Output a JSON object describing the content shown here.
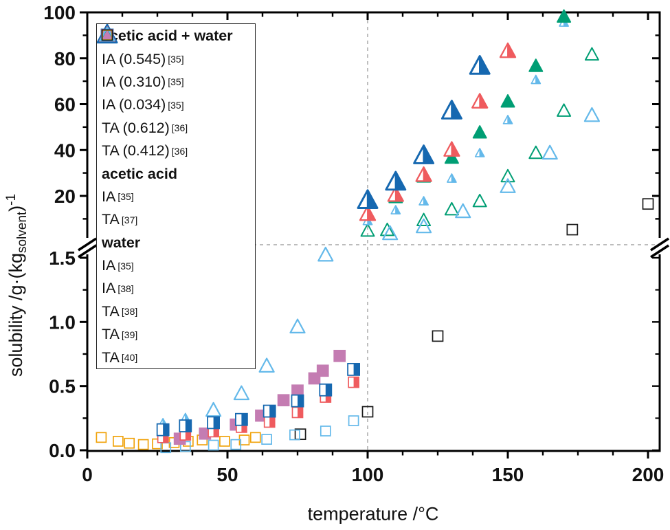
{
  "chart_data": {
    "type": "scatter",
    "title": "",
    "xlabel": "temperature /°C",
    "ylabel_parts": {
      "pre": "solubility /g·(kg",
      "sub": "solvent",
      "post": ")",
      "sup": "-1"
    },
    "x_axis": {
      "ticks": [
        0,
        50,
        100,
        150,
        200
      ],
      "minor_interval": 12.5,
      "range": [
        0,
        204
      ]
    },
    "y_axis_broken": {
      "upper_segment": {
        "ticks": [
          20,
          40,
          60,
          80,
          100
        ],
        "minor_ticks": [
          10,
          30,
          50,
          70,
          90
        ],
        "units": "g/kg_solvent"
      },
      "lower_segment": {
        "ticks": [
          0.0,
          0.5,
          1.0,
          1.5
        ],
        "minor_ticks": [
          0.25,
          0.75,
          1.25
        ],
        "units": "g/kg_solvent"
      }
    },
    "guide_lines": {
      "vertical_at_x": 100,
      "horizontal_at_axis_break": true,
      "color": "#b3b3b3"
    },
    "colors": {
      "blue": "#1668b0",
      "red": "#ef5b5e",
      "lightblue": "#64b9ea",
      "green": "#009e74",
      "pink": "#c47cb2",
      "orange": "#f0a30c",
      "black": "#1a1a1a"
    },
    "legend_groups": [
      {
        "header": "acetic acid + water",
        "items": [
          "ia_aw_0545",
          "ia_aw_0310",
          "ia_aw_0034",
          "ta_aw_0612",
          "ta_aw_0412"
        ]
      },
      {
        "header": "acetic acid",
        "items": [
          "ia_aa",
          "ta_aa"
        ]
      },
      {
        "header": "water",
        "items": [
          "ia_w35",
          "ia_w38",
          "ta_w38",
          "ta_w39",
          "ta_w40"
        ]
      }
    ],
    "series": [
      {
        "id": "ia_aw_0545",
        "label": "IA (0.545)",
        "ref": "[35]",
        "marker": "tri-half",
        "color": "#1668b0",
        "size": 28,
        "z": 10,
        "points_upper": [
          [
            100,
            18
          ],
          [
            110,
            26
          ],
          [
            120,
            37.5
          ],
          [
            130,
            57
          ],
          [
            140,
            76.5
          ]
        ],
        "points_lower": []
      },
      {
        "id": "ia_aw_0310",
        "label": "IA (0.310)",
        "ref": "[35]",
        "marker": "tri-half",
        "color": "#ef5b5e",
        "size": 22,
        "z": 9,
        "points_upper": [
          [
            100,
            12
          ],
          [
            110,
            20.3
          ],
          [
            120,
            29
          ],
          [
            130,
            40
          ],
          [
            140,
            61
          ],
          [
            150,
            83
          ]
        ],
        "points_lower": []
      },
      {
        "id": "ia_aw_0034",
        "label": "IA (0.034)",
        "ref": "[35]",
        "marker": "tri-half",
        "color": "#64b9ea",
        "size": 13,
        "z": 6,
        "points_upper": [
          [
            100,
            9
          ],
          [
            110,
            13.7
          ],
          [
            120,
            17.6
          ],
          [
            130,
            27.5
          ],
          [
            140,
            38.6
          ],
          [
            150,
            53
          ],
          [
            160,
            70.5
          ],
          [
            170,
            95.5
          ]
        ],
        "points_lower": [
          [
            27,
            0.21
          ],
          [
            35,
            0.25
          ]
        ]
      },
      {
        "id": "ta_aw_0612",
        "label": "TA (0.612)",
        "ref": "[36]",
        "marker": "sq-half",
        "color": "#1668b0",
        "size": 17,
        "z": 12,
        "points_upper": [],
        "points_lower": [
          [
            27,
            0.16
          ],
          [
            35,
            0.19
          ],
          [
            45,
            0.215
          ],
          [
            55,
            0.24
          ],
          [
            65,
            0.305
          ],
          [
            75,
            0.385
          ],
          [
            85,
            0.47
          ],
          [
            95,
            0.63
          ]
        ]
      },
      {
        "id": "ta_aw_0412",
        "label": "TA (0.412)",
        "ref": "[36]",
        "marker": "sq-half",
        "color": "#ef5b5e",
        "size": 15,
        "z": 11,
        "points_upper": [],
        "points_lower": [
          [
            27,
            0.1
          ],
          [
            35,
            0.12
          ],
          [
            45,
            0.145
          ],
          [
            55,
            0.18
          ],
          [
            65,
            0.22
          ],
          [
            75,
            0.295
          ],
          [
            85,
            0.415
          ],
          [
            95,
            0.53
          ]
        ]
      },
      {
        "id": "ia_aa",
        "label": "IA",
        "ref": "[35]",
        "marker": "tri-filled",
        "color": "#009e74",
        "size": 19,
        "z": 8,
        "points_upper": [
          [
            110,
            19.3
          ],
          [
            120,
            28.3
          ],
          [
            130,
            36.5
          ],
          [
            140,
            47.5
          ],
          [
            150,
            61
          ],
          [
            160,
            76.5
          ],
          [
            170,
            98
          ]
        ],
        "points_lower": []
      },
      {
        "id": "ta_aa",
        "label": "TA",
        "ref": "[37]",
        "marker": "sq-filled",
        "color": "#c47cb2",
        "size": 16,
        "z": 7,
        "points_upper": [],
        "points_lower": [
          [
            33,
            0.09
          ],
          [
            42,
            0.13
          ],
          [
            53,
            0.2
          ],
          [
            62,
            0.27
          ],
          [
            70,
            0.39
          ],
          [
            75,
            0.465
          ],
          [
            81,
            0.56
          ],
          [
            84,
            0.62
          ],
          [
            90,
            0.735
          ]
        ]
      },
      {
        "id": "ia_w35",
        "label": "IA",
        "ref": "[35]",
        "marker": "tri-open",
        "color": "#009e74",
        "size": 19,
        "z": 4,
        "points_upper": [
          [
            100,
            4.7
          ],
          [
            107,
            5.0
          ],
          [
            120,
            9.3
          ],
          [
            130,
            14.0
          ],
          [
            140,
            17.6
          ],
          [
            150,
            28.4
          ],
          [
            160,
            38.6
          ],
          [
            170,
            57
          ],
          [
            180,
            81.5
          ]
        ],
        "points_lower": []
      },
      {
        "id": "ia_w38",
        "label": "IA",
        "ref": "[38]",
        "marker": "tri-open",
        "color": "#64b9ea",
        "size": 21,
        "z": 5,
        "points_upper": [
          [
            108,
            3.5
          ],
          [
            120,
            6.5
          ],
          [
            134,
            13.1
          ],
          [
            150,
            24
          ],
          [
            165,
            38.6
          ],
          [
            180,
            55
          ]
        ],
        "points_lower": [
          [
            45,
            0.31
          ],
          [
            55,
            0.44
          ],
          [
            64,
            0.655
          ],
          [
            75,
            0.96
          ],
          [
            85,
            1.52
          ]
        ]
      },
      {
        "id": "ta_w38",
        "label": "TA",
        "ref": "[38]",
        "marker": "sq-open",
        "color": "#64b9ea",
        "size": 14,
        "z": 3,
        "points_upper": [],
        "points_lower": [
          [
            28,
            0.02
          ],
          [
            35,
            0.03
          ],
          [
            45,
            0.04
          ],
          [
            53,
            0.045
          ],
          [
            64,
            0.085
          ],
          [
            74,
            0.12
          ],
          [
            85,
            0.15
          ],
          [
            95,
            0.23
          ]
        ]
      },
      {
        "id": "ta_w39",
        "label": "TA",
        "ref": "[39]",
        "marker": "sq-open",
        "color": "#f0a30c",
        "size": 14,
        "z": 1,
        "points_upper": [],
        "points_lower": [
          [
            5,
            0.1
          ],
          [
            11,
            0.07
          ],
          [
            15,
            0.055
          ],
          [
            20,
            0.045
          ],
          [
            25,
            0.05
          ],
          [
            31,
            0.06
          ],
          [
            36,
            0.07
          ],
          [
            41,
            0.08
          ],
          [
            49,
            0.07
          ],
          [
            56,
            0.08
          ],
          [
            60,
            0.1
          ]
        ]
      },
      {
        "id": "ta_w40",
        "label": "TA",
        "ref": "[40]",
        "marker": "sq-open",
        "color": "#1a1a1a",
        "size": 15,
        "z": 2,
        "points_upper": [
          [
            173,
            5.3
          ],
          [
            200,
            16.5
          ]
        ],
        "points_lower": [
          [
            76,
            0.125
          ],
          [
            100,
            0.3
          ],
          [
            125,
            0.89
          ]
        ]
      }
    ]
  }
}
